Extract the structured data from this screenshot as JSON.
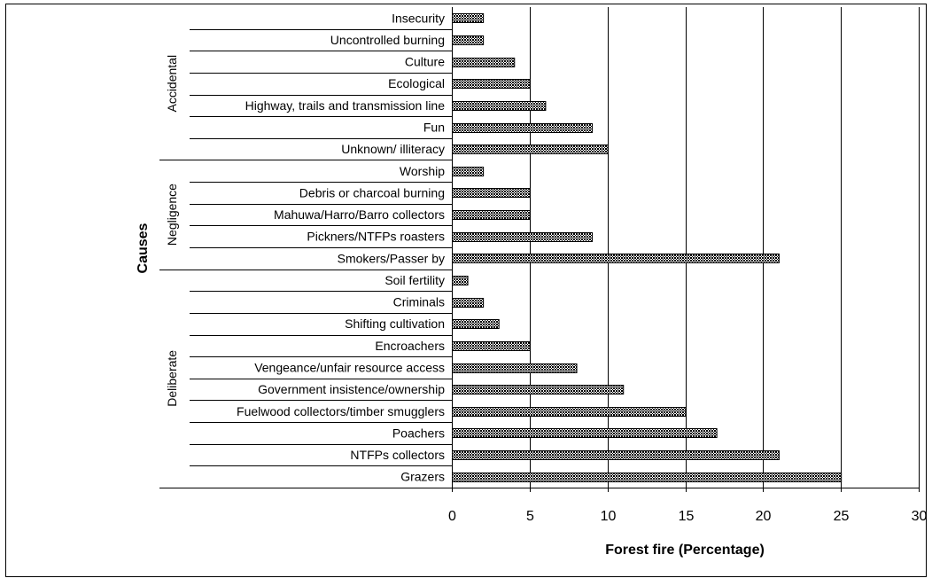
{
  "chart_data": {
    "type": "bar",
    "orientation": "horizontal",
    "title": "",
    "xlabel": "Forest fire (Percentage)",
    "ylabel": "Causes",
    "xlim": [
      0,
      30
    ],
    "xticks": [
      0,
      5,
      10,
      15,
      20,
      25,
      30
    ],
    "grid": "vertical",
    "bar_color": "#8a8a8a",
    "bar_pattern": "dense-crosshatch",
    "groups": [
      {
        "name": "Accidental",
        "categories": [
          "Insecurity",
          "Uncontrolled burning",
          "Culture",
          "Ecological",
          "Highway, trails and transmission line",
          "Fun",
          "Unknown/ illiteracy"
        ],
        "values": [
          2,
          2,
          4,
          5,
          6,
          9,
          10
        ]
      },
      {
        "name": "Negligence",
        "categories": [
          "Worship",
          "Debris or charcoal burning",
          "Mahuwa/Harro/Barro collectors",
          "Pickners/NTFPs roasters",
          "Smokers/Passer by"
        ],
        "values": [
          2,
          5,
          5,
          9,
          21
        ]
      },
      {
        "name": "Deliberate",
        "categories": [
          "Soil fertility",
          "Criminals",
          "Shifting cultivation",
          "Encroachers",
          "Vengeance/unfair resource access",
          "Government insistence/ownership",
          "Fuelwood collectors/timber smugglers",
          "Poachers",
          "NTFPs collectors",
          "Grazers"
        ],
        "values": [
          1,
          2,
          3,
          5,
          8,
          11,
          15,
          17,
          21,
          25
        ]
      }
    ]
  }
}
